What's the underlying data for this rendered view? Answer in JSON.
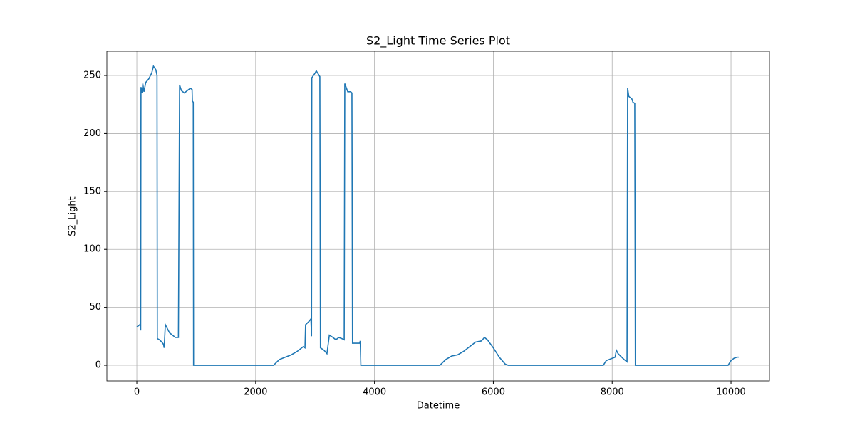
{
  "chart_data": {
    "type": "line",
    "title": "S2_Light Time Series Plot",
    "x_label": "Datetime",
    "y_label": "S2_Light",
    "x": [
      0,
      50,
      60,
      65,
      70,
      90,
      100,
      120,
      150,
      200,
      250,
      280,
      320,
      340,
      345,
      380,
      420,
      450,
      460,
      480,
      500,
      550,
      600,
      650,
      700,
      720,
      750,
      800,
      850,
      900,
      930,
      935,
      950,
      955,
      2300,
      2400,
      2500,
      2600,
      2700,
      2800,
      2830,
      2840,
      2900,
      2930,
      2940,
      2945,
      3000,
      3020,
      3080,
      3090,
      3150,
      3200,
      3240,
      3300,
      3350,
      3400,
      3450,
      3490,
      3500,
      3550,
      3600,
      3620,
      3630,
      3700,
      3750,
      3760,
      3770,
      5100,
      5200,
      5300,
      5400,
      5500,
      5600,
      5700,
      5800,
      5850,
      5900,
      6000,
      6100,
      6200,
      6250,
      7850,
      7900,
      8000,
      8050,
      8070,
      8100,
      8200,
      8250,
      8260,
      8280,
      8330,
      8350,
      8380,
      8390,
      9950,
      10000,
      10050,
      10100,
      10130
    ],
    "series": [
      {
        "name": "S2_Light",
        "color": "#1f77b4",
        "values": [
          33,
          35,
          36,
          30,
          240,
          235,
          243,
          236,
          244,
          247,
          252,
          258,
          255,
          250,
          23,
          22,
          20,
          18,
          15,
          35,
          33,
          28,
          26,
          24,
          24,
          242,
          237,
          235,
          237,
          239,
          238,
          228,
          227,
          0,
          0,
          5,
          7,
          9,
          12,
          16,
          15,
          35,
          38,
          40,
          25,
          248,
          252,
          254,
          249,
          15,
          13,
          10,
          26,
          24,
          22,
          24,
          23,
          22,
          243,
          236,
          236,
          235,
          19,
          19,
          19,
          21,
          0,
          0,
          5,
          8,
          9,
          12,
          16,
          20,
          21,
          24,
          22,
          15,
          7,
          1,
          0,
          0,
          4,
          6,
          7,
          13,
          10,
          5,
          3,
          239,
          232,
          230,
          227,
          226,
          0,
          0,
          4,
          6,
          7,
          7
        ]
      }
    ],
    "xlim": [
      -504,
      10647
    ],
    "ylim": [
      -13.5,
      270.9
    ],
    "xticks": [
      0,
      2000,
      4000,
      6000,
      8000,
      10000
    ],
    "yticks": [
      0,
      50,
      100,
      150,
      200,
      250
    ],
    "grid": true
  }
}
